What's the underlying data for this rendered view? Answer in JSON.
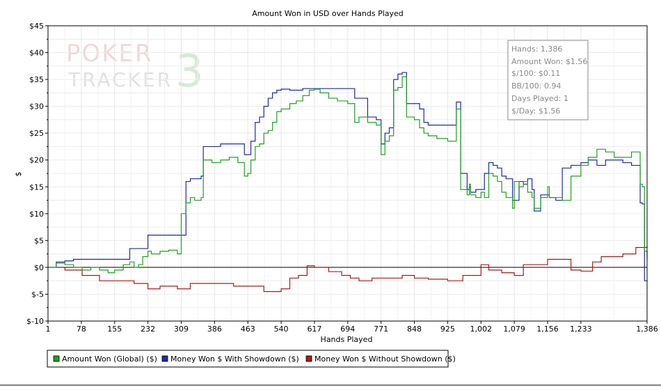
{
  "chart_data": {
    "type": "line",
    "title": "Amount Won in USD over Hands Played",
    "xlabel": "Hands Played",
    "ylabel": "$",
    "xlim": [
      1,
      1386
    ],
    "ylim": [
      -10,
      45
    ],
    "grid": true,
    "legend_position": "bottom-left",
    "x_ticks": [
      1,
      78,
      155,
      232,
      309,
      386,
      463,
      540,
      617,
      694,
      771,
      848,
      925,
      1002,
      1079,
      1156,
      1233,
      1386
    ],
    "x_tick_labels": [
      "1",
      "78",
      "155",
      "232",
      "309",
      "386",
      "463",
      "540",
      "617",
      "694",
      "771",
      "848",
      "925",
      "1,002",
      "1,079",
      "1,156",
      "1,233",
      "1,386"
    ],
    "y_ticks": [
      -10,
      -5,
      0,
      5,
      10,
      15,
      20,
      25,
      30,
      35,
      40,
      45
    ],
    "y_tick_labels": [
      "$-10",
      "$-5",
      "$0",
      "$5",
      "$10",
      "$15",
      "$20",
      "$25",
      "$30",
      "$35",
      "$40",
      "$45"
    ],
    "series": [
      {
        "name": "Amount Won (Global) ($)",
        "color": "#1fa01f",
        "x": [
          1,
          20,
          40,
          60,
          80,
          100,
          120,
          140,
          155,
          175,
          190,
          200,
          210,
          220,
          232,
          240,
          260,
          280,
          300,
          309,
          320,
          330,
          340,
          355,
          360,
          380,
          400,
          420,
          440,
          455,
          463,
          470,
          480,
          490,
          500,
          510,
          520,
          530,
          540,
          560,
          575,
          590,
          605,
          617,
          630,
          650,
          670,
          694,
          710,
          720,
          740,
          760,
          771,
          780,
          790,
          800,
          810,
          820,
          830,
          848,
          860,
          870,
          880,
          900,
          925,
          945,
          955,
          970,
          975,
          978,
          990,
          1002,
          1010,
          1020,
          1030,
          1040,
          1050,
          1060,
          1075,
          1079,
          1090,
          1100,
          1110,
          1120,
          1125,
          1140,
          1156,
          1160,
          1175,
          1190,
          1210,
          1233,
          1250,
          1270,
          1290,
          1310,
          1330,
          1350,
          1370,
          1375,
          1380,
          1386
        ],
        "values": [
          0,
          0.8,
          0.5,
          0,
          -0.5,
          0,
          -0.5,
          -1,
          -0.5,
          0.5,
          1,
          0,
          0.5,
          2,
          3,
          2.5,
          3,
          3.2,
          2.5,
          10,
          12,
          13,
          12.5,
          13,
          20,
          19.5,
          20,
          20.5,
          19.5,
          17,
          17.5,
          20,
          22.5,
          23,
          25,
          25.5,
          27,
          29,
          29.5,
          30.5,
          31,
          32,
          33,
          33.2,
          32.5,
          31.5,
          31,
          30.5,
          27,
          28,
          27,
          26.5,
          21,
          23.5,
          24.5,
          33,
          33.5,
          35.5,
          28,
          27.5,
          26,
          25,
          24.5,
          24,
          23.5,
          29.5,
          14.5,
          13.5,
          15.5,
          13.5,
          13,
          14,
          13,
          17.5,
          17,
          16,
          14,
          13,
          11,
          16,
          15,
          16,
          14,
          13,
          11,
          13,
          15,
          13,
          13,
          12.5,
          17,
          19,
          20.5,
          22,
          21.5,
          20.5,
          20.5,
          21.5,
          15.5,
          15,
          3,
          1.5
        ]
      },
      {
        "name": "Money Won $ With Showdown ($)",
        "color": "#1c2aa8",
        "x": [
          1,
          20,
          40,
          60,
          80,
          155,
          175,
          190,
          200,
          210,
          232,
          260,
          280,
          300,
          309,
          320,
          330,
          340,
          355,
          360,
          380,
          400,
          420,
          440,
          455,
          463,
          470,
          480,
          490,
          500,
          510,
          520,
          530,
          540,
          560,
          575,
          590,
          617,
          630,
          650,
          670,
          694,
          710,
          720,
          740,
          760,
          771,
          780,
          790,
          800,
          810,
          820,
          830,
          848,
          860,
          870,
          880,
          900,
          925,
          945,
          955,
          970,
          975,
          978,
          990,
          1002,
          1010,
          1020,
          1030,
          1040,
          1050,
          1060,
          1075,
          1079,
          1090,
          1100,
          1110,
          1120,
          1125,
          1140,
          1156,
          1160,
          1175,
          1190,
          1210,
          1233,
          1250,
          1270,
          1290,
          1310,
          1330,
          1350,
          1370,
          1375,
          1380,
          1386
        ],
        "values": [
          0,
          1,
          1.2,
          1.5,
          1.5,
          1.5,
          1.5,
          3.5,
          3.5,
          3.5,
          6,
          6,
          6,
          6,
          6,
          16,
          16.5,
          16.5,
          17,
          22.5,
          22.5,
          23,
          23,
          23,
          21,
          21,
          23.5,
          27,
          28,
          30,
          31.5,
          32.5,
          33,
          33.2,
          33,
          33,
          33.3,
          33.3,
          33.3,
          33.3,
          33.3,
          33.3,
          31.5,
          31.5,
          28,
          27.5,
          23,
          25,
          26,
          35,
          36,
          36.3,
          30.5,
          30.5,
          29.5,
          27,
          26.5,
          26.5,
          26.5,
          30.8,
          17.5,
          14.5,
          15,
          14,
          14.5,
          14.5,
          17.5,
          19.5,
          19,
          18.5,
          17,
          16.5,
          12.5,
          12.5,
          16,
          15.5,
          16.5,
          14.5,
          10.5,
          13.5,
          13.5,
          13,
          12.5,
          18.5,
          19,
          19.5,
          20,
          19,
          20,
          20,
          19.5,
          19,
          12,
          11.8,
          -2.5,
          -2.3
        ]
      },
      {
        "name": "Money Won $ Without Showdown ($)",
        "color": "#aa1818",
        "x": [
          1,
          40,
          80,
          120,
          155,
          200,
          232,
          260,
          300,
          330,
          360,
          400,
          430,
          470,
          500,
          540,
          560,
          580,
          600,
          617,
          650,
          680,
          700,
          720,
          750,
          790,
          820,
          848,
          880,
          925,
          960,
          980,
          1002,
          1020,
          1050,
          1079,
          1100,
          1120,
          1156,
          1180,
          1210,
          1233,
          1260,
          1280,
          1300,
          1330,
          1360,
          1386
        ],
        "values": [
          0,
          -0.5,
          -1.5,
          -2.5,
          -2.5,
          -3,
          -4,
          -3.5,
          -4,
          -3,
          -3,
          -3,
          -3.5,
          -3.5,
          -4.5,
          -4,
          -2,
          -1.5,
          0.3,
          0,
          -0.8,
          -1.5,
          -2,
          -2.5,
          -2,
          -2,
          -1.5,
          -2,
          -2.2,
          -2.5,
          -1.5,
          -1.5,
          0.5,
          -0.5,
          -1,
          -1.5,
          0.5,
          0.5,
          1.5,
          1.5,
          -0.5,
          -0.7,
          1,
          2,
          2,
          2.5,
          3.7,
          4
        ]
      }
    ],
    "annotation_stats": [
      "Hands: 1,386",
      "Amount Won: $1.56",
      "$/100: $0.11",
      "BB/100: 0.94",
      "Days Played: 1",
      "$/Day: $1.56"
    ]
  },
  "logo": {
    "text_line1": "POKER",
    "text_line2": "TRACKER",
    "text_number": "3"
  }
}
